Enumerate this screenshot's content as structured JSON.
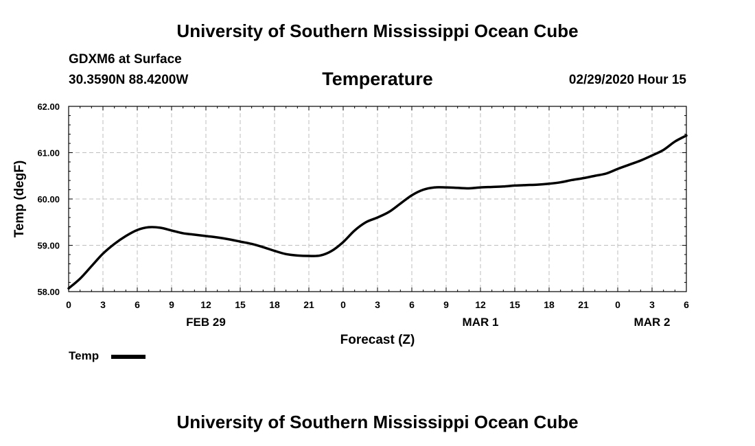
{
  "header": {
    "title": "University of Southern Mississippi Ocean Cube",
    "station": "GDXM6 at Surface",
    "coordinates": "30.3590N 88.4200W",
    "variable": "Temperature",
    "valid_time": "02/29/2020 Hour 15"
  },
  "footer": {
    "title": "University of Southern Mississippi Ocean Cube"
  },
  "legend": {
    "label": "Temp",
    "color": "#000000"
  },
  "chart_data": {
    "type": "line",
    "xlabel": "Forecast (Z)",
    "ylabel": "Temp (degF)",
    "xlim": [
      0,
      54
    ],
    "ylim": [
      58.0,
      62.0
    ],
    "grid": true,
    "legend_position": "bottom-left",
    "x_ticks": [
      {
        "x": 0,
        "label": "0"
      },
      {
        "x": 3,
        "label": "3"
      },
      {
        "x": 6,
        "label": "6"
      },
      {
        "x": 9,
        "label": "9"
      },
      {
        "x": 12,
        "label": "12"
      },
      {
        "x": 15,
        "label": "15"
      },
      {
        "x": 18,
        "label": "18"
      },
      {
        "x": 21,
        "label": "21"
      },
      {
        "x": 24,
        "label": "0"
      },
      {
        "x": 27,
        "label": "3"
      },
      {
        "x": 30,
        "label": "6"
      },
      {
        "x": 33,
        "label": "9"
      },
      {
        "x": 36,
        "label": "12"
      },
      {
        "x": 39,
        "label": "15"
      },
      {
        "x": 42,
        "label": "18"
      },
      {
        "x": 45,
        "label": "21"
      },
      {
        "x": 48,
        "label": "0"
      },
      {
        "x": 51,
        "label": "3"
      },
      {
        "x": 54,
        "label": "6"
      }
    ],
    "y_ticks": [
      {
        "y": 58.0,
        "label": "58.00"
      },
      {
        "y": 59.0,
        "label": "59.00"
      },
      {
        "y": 60.0,
        "label": "60.00"
      },
      {
        "y": 61.0,
        "label": "61.00"
      },
      {
        "y": 62.0,
        "label": "62.00"
      }
    ],
    "day_labels": [
      {
        "x": 12,
        "label": "FEB 29"
      },
      {
        "x": 36,
        "label": "MAR 1"
      },
      {
        "x": 51,
        "label": "MAR 2"
      }
    ],
    "series": [
      {
        "name": "Temp",
        "color": "#000000",
        "x": [
          0,
          1,
          2,
          3,
          4,
          5,
          6,
          7,
          8,
          9,
          10,
          11,
          12,
          13,
          14,
          15,
          16,
          17,
          18,
          19,
          20,
          21,
          22,
          23,
          24,
          25,
          26,
          27,
          28,
          29,
          30,
          31,
          32,
          33,
          34,
          35,
          36,
          37,
          38,
          39,
          40,
          41,
          42,
          43,
          44,
          45,
          46,
          47,
          48,
          49,
          50,
          51,
          52,
          53,
          54
        ],
        "values": [
          58.07,
          58.28,
          58.55,
          58.82,
          59.03,
          59.2,
          59.33,
          59.39,
          59.38,
          59.32,
          59.26,
          59.23,
          59.2,
          59.17,
          59.13,
          59.08,
          59.03,
          58.96,
          58.88,
          58.81,
          58.78,
          58.77,
          58.78,
          58.88,
          59.07,
          59.32,
          59.5,
          59.6,
          59.72,
          59.9,
          60.08,
          60.2,
          60.25,
          60.25,
          60.24,
          60.23,
          60.25,
          60.26,
          60.27,
          60.29,
          60.3,
          60.31,
          60.33,
          60.36,
          60.41,
          60.45,
          60.5,
          60.55,
          60.65,
          60.74,
          60.83,
          60.94,
          61.06,
          61.24,
          61.37
        ]
      }
    ]
  }
}
